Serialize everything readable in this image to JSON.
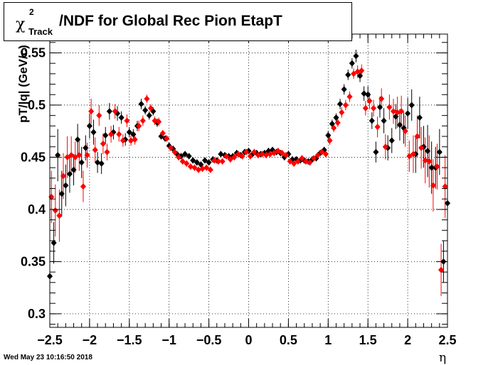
{
  "title": {
    "chi": "χ",
    "superscript": "2",
    "subscript": "Track",
    "text": "/NDF for Global Rec Pion EtapT"
  },
  "datestamp": "Wed May 23 10:16:50 2018",
  "chart_data": {
    "type": "scatter",
    "xlabel": "η",
    "ylabel": "pT/|q| (GeV/c)",
    "xlim": [
      -2.5,
      2.5
    ],
    "ylim": [
      0.287,
      0.568
    ],
    "xticks": [
      -2.5,
      -2,
      -1.5,
      -1,
      -0.5,
      0,
      0.5,
      1,
      1.5,
      2,
      2.5
    ],
    "xtick_labels": [
      "−2.5",
      "−2",
      "−1.5",
      "−1",
      "−0.5",
      "0",
      "0.5",
      "1",
      "1.5",
      "2",
      "2.5"
    ],
    "yticks": [
      0.3,
      0.35,
      0.4,
      0.45,
      0.5,
      0.55
    ],
    "ytick_labels": [
      "0.3",
      "0.35",
      "0.4",
      "0.45",
      "0.5",
      "0.55"
    ],
    "grid": true,
    "series": [
      {
        "color": "#000000",
        "marker": "diamond",
        "x": [
          -2.5,
          -2.45,
          -2.4,
          -2.35,
          -2.3,
          -2.25,
          -2.2,
          -2.15,
          -2.1,
          -2.05,
          -2.0,
          -1.95,
          -1.9,
          -1.85,
          -1.8,
          -1.75,
          -1.7,
          -1.65,
          -1.6,
          -1.55,
          -1.5,
          -1.45,
          -1.4,
          -1.35,
          -1.3,
          -1.25,
          -1.2,
          -1.15,
          -1.1,
          -1.05,
          -1.0,
          -0.95,
          -0.9,
          -0.85,
          -0.8,
          -0.75,
          -0.7,
          -0.65,
          -0.6,
          -0.55,
          -0.5,
          -0.45,
          -0.4,
          -0.35,
          -0.3,
          -0.25,
          -0.2,
          -0.15,
          -0.1,
          -0.05,
          0.0,
          0.05,
          0.1,
          0.15,
          0.2,
          0.25,
          0.3,
          0.35,
          0.4,
          0.45,
          0.5,
          0.55,
          0.6,
          0.65,
          0.7,
          0.75,
          0.8,
          0.85,
          0.9,
          0.95,
          1.0,
          1.05,
          1.1,
          1.15,
          1.2,
          1.25,
          1.3,
          1.35,
          1.4,
          1.45,
          1.5,
          1.55,
          1.6,
          1.65,
          1.7,
          1.75,
          1.8,
          1.85,
          1.9,
          1.95,
          2.0,
          2.05,
          2.1,
          2.15,
          2.2,
          2.25,
          2.3,
          2.35,
          2.4,
          2.45,
          2.5
        ],
        "y": [
          0.336,
          0.368,
          0.452,
          0.415,
          0.423,
          0.434,
          0.438,
          0.467,
          0.445,
          0.459,
          0.48,
          0.474,
          0.445,
          0.444,
          0.471,
          0.494,
          0.474,
          0.492,
          0.488,
          0.467,
          0.474,
          0.472,
          0.48,
          0.501,
          0.495,
          0.49,
          0.494,
          0.483,
          0.47,
          0.468,
          0.461,
          0.458,
          0.453,
          0.451,
          0.453,
          0.451,
          0.447,
          0.445,
          0.443,
          0.447,
          0.445,
          0.448,
          0.447,
          0.453,
          0.452,
          0.451,
          0.451,
          0.454,
          0.452,
          0.455,
          0.456,
          0.453,
          0.454,
          0.453,
          0.454,
          0.456,
          0.457,
          0.455,
          0.454,
          0.45,
          0.453,
          0.448,
          0.448,
          0.447,
          0.447,
          0.446,
          0.448,
          0.449,
          0.454,
          0.457,
          0.471,
          0.482,
          0.488,
          0.501,
          0.515,
          0.529,
          0.54,
          0.547,
          0.528,
          0.511,
          0.51,
          0.485,
          0.455,
          0.498,
          0.485,
          0.459,
          0.466,
          0.489,
          0.481,
          0.478,
          0.492,
          0.5,
          0.453,
          0.488,
          0.46,
          0.456,
          0.44,
          0.44,
          0.455,
          0.35,
          0.406
        ],
        "yerr": [
          0.02,
          0.02,
          0.025,
          0.022,
          0.02,
          0.018,
          0.015,
          0.015,
          0.015,
          0.012,
          0.012,
          0.012,
          0.01,
          0.01,
          0.008,
          0.008,
          0.007,
          0.007,
          0.006,
          0.006,
          0.005,
          0.005,
          0.005,
          0.005,
          0.004,
          0.004,
          0.004,
          0.004,
          0.003,
          0.003,
          0.003,
          0.003,
          0.003,
          0.003,
          0.003,
          0.003,
          0.003,
          0.003,
          0.003,
          0.003,
          0.003,
          0.003,
          0.003,
          0.003,
          0.003,
          0.003,
          0.003,
          0.003,
          0.003,
          0.003,
          0.003,
          0.003,
          0.003,
          0.003,
          0.003,
          0.003,
          0.003,
          0.003,
          0.003,
          0.003,
          0.003,
          0.003,
          0.003,
          0.003,
          0.003,
          0.003,
          0.003,
          0.003,
          0.003,
          0.003,
          0.004,
          0.004,
          0.004,
          0.005,
          0.005,
          0.005,
          0.005,
          0.006,
          0.006,
          0.007,
          0.008,
          0.008,
          0.01,
          0.01,
          0.012,
          0.012,
          0.012,
          0.012,
          0.015,
          0.015,
          0.015,
          0.015,
          0.018,
          0.02,
          0.02,
          0.025,
          0.025,
          0.02,
          0.022,
          0.02,
          0.025
        ]
      },
      {
        "color": "#ff0000",
        "marker": "diamond",
        "x": [
          -2.48,
          -2.43,
          -2.38,
          -2.33,
          -2.28,
          -2.23,
          -2.18,
          -2.13,
          -2.08,
          -2.03,
          -1.98,
          -1.93,
          -1.88,
          -1.83,
          -1.78,
          -1.73,
          -1.68,
          -1.63,
          -1.58,
          -1.53,
          -1.48,
          -1.43,
          -1.38,
          -1.33,
          -1.28,
          -1.23,
          -1.18,
          -1.13,
          -1.08,
          -1.03,
          -0.98,
          -0.93,
          -0.88,
          -0.83,
          -0.78,
          -0.73,
          -0.68,
          -0.63,
          -0.58,
          -0.53,
          -0.48,
          -0.43,
          -0.38,
          -0.33,
          -0.28,
          -0.23,
          -0.18,
          -0.13,
          -0.08,
          -0.03,
          0.02,
          0.07,
          0.12,
          0.17,
          0.22,
          0.27,
          0.32,
          0.37,
          0.42,
          0.47,
          0.52,
          0.57,
          0.62,
          0.67,
          0.72,
          0.77,
          0.82,
          0.87,
          0.92,
          0.97,
          1.02,
          1.07,
          1.12,
          1.17,
          1.22,
          1.27,
          1.32,
          1.37,
          1.42,
          1.47,
          1.52,
          1.57,
          1.62,
          1.67,
          1.72,
          1.77,
          1.82,
          1.87,
          1.92,
          1.97,
          2.02,
          2.07,
          2.12,
          2.17,
          2.22,
          2.27,
          2.32,
          2.37,
          2.42,
          2.47
        ],
        "y": [
          0.412,
          0.399,
          0.394,
          0.432,
          0.45,
          0.452,
          0.45,
          0.452,
          0.422,
          0.452,
          0.494,
          0.457,
          0.49,
          0.463,
          0.455,
          0.472,
          0.494,
          0.472,
          0.466,
          0.485,
          0.466,
          0.467,
          0.48,
          0.485,
          0.506,
          0.497,
          0.485,
          0.484,
          0.473,
          0.468,
          0.459,
          0.455,
          0.45,
          0.446,
          0.444,
          0.441,
          0.44,
          0.438,
          0.439,
          0.44,
          0.438,
          0.447,
          0.446,
          0.446,
          0.451,
          0.448,
          0.45,
          0.453,
          0.451,
          0.455,
          0.451,
          0.455,
          0.452,
          0.453,
          0.452,
          0.453,
          0.454,
          0.456,
          0.454,
          0.452,
          0.446,
          0.444,
          0.446,
          0.449,
          0.446,
          0.445,
          0.449,
          0.452,
          0.455,
          0.453,
          0.466,
          0.478,
          0.483,
          0.493,
          0.5,
          0.508,
          0.53,
          0.532,
          0.533,
          0.497,
          0.504,
          0.497,
          0.479,
          0.506,
          0.46,
          0.498,
          0.494,
          0.493,
          0.494,
          0.475,
          0.451,
          0.453,
          0.47,
          0.459,
          0.447,
          0.446,
          0.423,
          0.441,
          0.342,
          0.422
        ],
        "yerr": [
          0.025,
          0.025,
          0.025,
          0.022,
          0.02,
          0.018,
          0.015,
          0.015,
          0.015,
          0.012,
          0.012,
          0.012,
          0.01,
          0.01,
          0.008,
          0.008,
          0.007,
          0.007,
          0.006,
          0.006,
          0.005,
          0.005,
          0.005,
          0.005,
          0.004,
          0.004,
          0.004,
          0.004,
          0.003,
          0.003,
          0.003,
          0.003,
          0.003,
          0.003,
          0.003,
          0.003,
          0.003,
          0.003,
          0.003,
          0.003,
          0.003,
          0.003,
          0.003,
          0.003,
          0.003,
          0.003,
          0.003,
          0.003,
          0.003,
          0.003,
          0.003,
          0.003,
          0.003,
          0.003,
          0.003,
          0.003,
          0.003,
          0.003,
          0.003,
          0.003,
          0.003,
          0.003,
          0.003,
          0.003,
          0.003,
          0.003,
          0.003,
          0.003,
          0.003,
          0.003,
          0.004,
          0.004,
          0.004,
          0.005,
          0.005,
          0.005,
          0.005,
          0.006,
          0.006,
          0.007,
          0.008,
          0.008,
          0.01,
          0.01,
          0.012,
          0.012,
          0.012,
          0.015,
          0.015,
          0.015,
          0.015,
          0.018,
          0.02,
          0.02,
          0.022,
          0.025,
          0.025,
          0.022,
          0.025,
          0.03
        ]
      }
    ]
  }
}
